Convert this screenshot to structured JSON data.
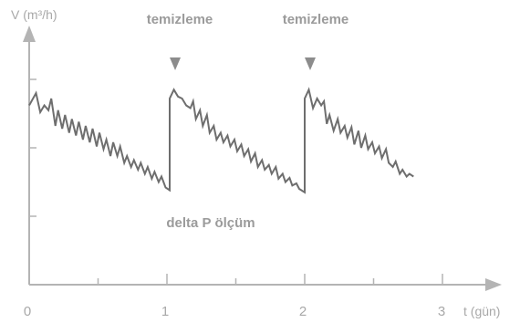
{
  "chart_data": {
    "type": "line",
    "title": "",
    "ylabel": "V (m³/h)",
    "xlabel": "t (gün)",
    "xlim": [
      0,
      3.45
    ],
    "ylim": [
      0,
      3
    ],
    "x_ticks": [
      "0",
      "1",
      "2",
      "3"
    ],
    "x_minor_ticks": [
      0.5,
      1.5,
      2.5
    ],
    "y_ticks": [
      1,
      2,
      3
    ],
    "grid": false,
    "legend": "none",
    "series": [
      {
        "points": [
          [
            0.0,
            2.62
          ],
          [
            0.05,
            2.8
          ],
          [
            0.08,
            2.52
          ],
          [
            0.11,
            2.62
          ],
          [
            0.14,
            2.55
          ],
          [
            0.16,
            2.72
          ],
          [
            0.19,
            2.32
          ],
          [
            0.21,
            2.55
          ],
          [
            0.24,
            2.28
          ],
          [
            0.26,
            2.48
          ],
          [
            0.29,
            2.22
          ],
          [
            0.31,
            2.42
          ],
          [
            0.34,
            2.18
          ],
          [
            0.36,
            2.38
          ],
          [
            0.39,
            2.12
          ],
          [
            0.41,
            2.32
          ],
          [
            0.44,
            2.08
          ],
          [
            0.46,
            2.28
          ],
          [
            0.49,
            2.02
          ],
          [
            0.51,
            2.22
          ],
          [
            0.54,
            1.98
          ],
          [
            0.56,
            2.12
          ],
          [
            0.59,
            1.88
          ],
          [
            0.61,
            2.08
          ],
          [
            0.64,
            1.88
          ],
          [
            0.66,
            2.02
          ],
          [
            0.69,
            1.78
          ],
          [
            0.71,
            1.88
          ],
          [
            0.74,
            1.72
          ],
          [
            0.76,
            1.82
          ],
          [
            0.79,
            1.68
          ],
          [
            0.81,
            1.78
          ],
          [
            0.84,
            1.62
          ],
          [
            0.86,
            1.72
          ],
          [
            0.89,
            1.55
          ],
          [
            0.91,
            1.65
          ],
          [
            0.94,
            1.5
          ],
          [
            0.96,
            1.58
          ],
          [
            0.99,
            1.42
          ],
          [
            1.02,
            1.38
          ],
          [
            1.02,
            2.72
          ],
          [
            1.05,
            2.85
          ],
          [
            1.08,
            2.75
          ],
          [
            1.11,
            2.72
          ],
          [
            1.14,
            2.62
          ],
          [
            1.17,
            2.58
          ],
          [
            1.19,
            2.68
          ],
          [
            1.21,
            2.42
          ],
          [
            1.24,
            2.55
          ],
          [
            1.26,
            2.32
          ],
          [
            1.29,
            2.48
          ],
          [
            1.31,
            2.22
          ],
          [
            1.34,
            2.32
          ],
          [
            1.36,
            2.12
          ],
          [
            1.39,
            2.22
          ],
          [
            1.41,
            2.08
          ],
          [
            1.44,
            2.18
          ],
          [
            1.46,
            2.02
          ],
          [
            1.49,
            2.12
          ],
          [
            1.51,
            1.95
          ],
          [
            1.54,
            2.05
          ],
          [
            1.56,
            1.88
          ],
          [
            1.59,
            1.98
          ],
          [
            1.61,
            1.8
          ],
          [
            1.64,
            1.92
          ],
          [
            1.66,
            1.72
          ],
          [
            1.69,
            1.82
          ],
          [
            1.71,
            1.68
          ],
          [
            1.74,
            1.75
          ],
          [
            1.76,
            1.62
          ],
          [
            1.79,
            1.72
          ],
          [
            1.81,
            1.55
          ],
          [
            1.84,
            1.62
          ],
          [
            1.86,
            1.5
          ],
          [
            1.89,
            1.56
          ],
          [
            1.91,
            1.45
          ],
          [
            1.94,
            1.48
          ],
          [
            1.96,
            1.4
          ],
          [
            2.0,
            1.35
          ],
          [
            2.0,
            2.72
          ],
          [
            2.03,
            2.85
          ],
          [
            2.06,
            2.58
          ],
          [
            2.09,
            2.72
          ],
          [
            2.12,
            2.62
          ],
          [
            2.14,
            2.68
          ],
          [
            2.16,
            2.35
          ],
          [
            2.18,
            2.48
          ],
          [
            2.21,
            2.25
          ],
          [
            2.24,
            2.42
          ],
          [
            2.26,
            2.22
          ],
          [
            2.29,
            2.32
          ],
          [
            2.31,
            2.15
          ],
          [
            2.34,
            2.3
          ],
          [
            2.36,
            2.05
          ],
          [
            2.39,
            2.25
          ],
          [
            2.41,
            2.0
          ],
          [
            2.44,
            2.18
          ],
          [
            2.46,
            1.98
          ],
          [
            2.49,
            2.08
          ],
          [
            2.51,
            1.92
          ],
          [
            2.54,
            2.02
          ],
          [
            2.56,
            1.85
          ],
          [
            2.59,
            1.98
          ],
          [
            2.61,
            1.78
          ],
          [
            2.64,
            1.72
          ],
          [
            2.66,
            1.8
          ],
          [
            2.69,
            1.62
          ],
          [
            2.71,
            1.68
          ],
          [
            2.74,
            1.58
          ],
          [
            2.76,
            1.62
          ],
          [
            2.79,
            1.58
          ]
        ]
      }
    ],
    "annotations": [
      {
        "text": "temizleme",
        "x": 1.02,
        "marker": "down-triangle"
      },
      {
        "text": "temizleme",
        "x": 2.0,
        "marker": "down-triangle"
      },
      {
        "text": "delta P ölçüm",
        "x": 1.48,
        "y": 0.95
      }
    ]
  }
}
